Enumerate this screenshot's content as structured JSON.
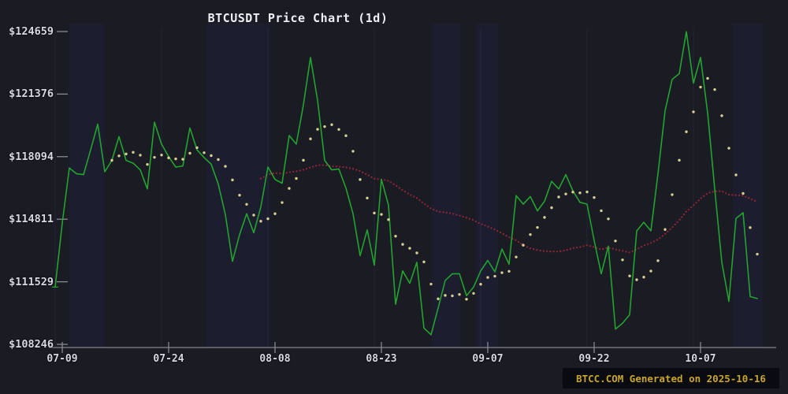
{
  "title": "BTCUSDT Price Chart (1d)",
  "credit": "BTCC.COM Generated on 2025-10-16",
  "colors": {
    "background": "#1b1b24",
    "band": "#1e2240",
    "gridline": "#5a64be",
    "axis": "#85858e",
    "tick": "#8a8a93",
    "label_text": "#d7d7e0",
    "title_text": "#eeeef4",
    "price_line": "#22a42e",
    "ma7_dots": "#d8d095",
    "ma30_dots": "#8c2635",
    "credit_bg": "#0a0a11",
    "credit_text": "#c9a62c"
  },
  "chart_data": {
    "type": "line",
    "symbol": "BTCUSDT",
    "interval": "1d",
    "title": "BTCUSDT Price Chart (1d)",
    "xlabel": "",
    "ylabel": "",
    "ylim": [
      108246,
      124659
    ],
    "grid": "faint vertical bands only",
    "legend_position": "none",
    "x": [
      "07-09",
      "07-10",
      "07-11",
      "07-12",
      "07-13",
      "07-14",
      "07-15",
      "07-16",
      "07-17",
      "07-18",
      "07-19",
      "07-20",
      "07-21",
      "07-22",
      "07-23",
      "07-24",
      "07-25",
      "07-26",
      "07-27",
      "07-28",
      "07-29",
      "07-30",
      "07-31",
      "08-01",
      "08-02",
      "08-03",
      "08-04",
      "08-05",
      "08-06",
      "08-07",
      "08-08",
      "08-09",
      "08-10",
      "08-11",
      "08-12",
      "08-13",
      "08-14",
      "08-15",
      "08-16",
      "08-17",
      "08-18",
      "08-19",
      "08-20",
      "08-21",
      "08-22",
      "08-23",
      "08-24",
      "08-25",
      "08-26",
      "08-27",
      "08-28",
      "08-29",
      "08-30",
      "08-31",
      "09-01",
      "09-02",
      "09-03",
      "09-04",
      "09-05",
      "09-06",
      "09-07",
      "09-08",
      "09-09",
      "09-10",
      "09-11",
      "09-12",
      "09-13",
      "09-14",
      "09-15",
      "09-16",
      "09-17",
      "09-18",
      "09-19",
      "09-20",
      "09-21",
      "09-22",
      "09-23",
      "09-24",
      "09-25",
      "09-26",
      "09-27",
      "09-28",
      "09-29",
      "09-30",
      "10-01",
      "10-02",
      "10-03",
      "10-04",
      "10-05",
      "10-06",
      "10-07",
      "10-08",
      "10-09",
      "10-10",
      "10-11",
      "10-12",
      "10-13",
      "10-14",
      "10-15",
      "10-16"
    ],
    "series": [
      {
        "name": "close",
        "style": "solid-line",
        "color_key": "price_line",
        "values": [
          111250,
          114600,
          117500,
          117200,
          117150,
          118450,
          119800,
          117300,
          117900,
          119150,
          117900,
          117750,
          117400,
          116400,
          119900,
          118750,
          118100,
          117550,
          117600,
          119600,
          118450,
          118050,
          117700,
          116650,
          115050,
          112600,
          114000,
          115100,
          114100,
          115450,
          117550,
          116900,
          116700,
          119200,
          118750,
          120800,
          123300,
          121050,
          117900,
          117400,
          117450,
          116450,
          115100,
          112900,
          114250,
          112400,
          116900,
          115550,
          110350,
          112100,
          111450,
          112550,
          109100,
          108750,
          110150,
          111600,
          111950,
          111950,
          110800,
          111250,
          112100,
          112650,
          112050,
          113250,
          112450,
          116050,
          115600,
          116000,
          115250,
          115750,
          116800,
          116400,
          117150,
          116300,
          115700,
          115600,
          113700,
          111950,
          113400,
          109050,
          109350,
          109800,
          114200,
          114650,
          114200,
          117200,
          120500,
          122150,
          122450,
          124650,
          121950,
          123300,
          120400,
          116400,
          112550,
          110500,
          114850,
          115150,
          110750,
          110650
        ]
      },
      {
        "name": "MA7",
        "style": "dot-markers",
        "color_key": "ma7_dots",
        "derived": "sma",
        "window": 7,
        "start_index": 8
      },
      {
        "name": "MA30",
        "style": "dotted-line",
        "color_key": "ma30_dots",
        "derived": "sma",
        "window": 30,
        "start_index": 29
      }
    ],
    "yticks": {
      "labels": [
        "$124659",
        "$121376",
        "$118094",
        "$114811",
        "$111529",
        "$108246"
      ],
      "values": [
        124659,
        121376,
        118094,
        114811,
        111529,
        108246
      ]
    },
    "xticks": {
      "labels": [
        "07-09",
        "07-24",
        "08-08",
        "08-23",
        "09-07",
        "09-22",
        "10-07"
      ],
      "indices": [
        0,
        15,
        30,
        45,
        60,
        75,
        90
      ]
    }
  }
}
